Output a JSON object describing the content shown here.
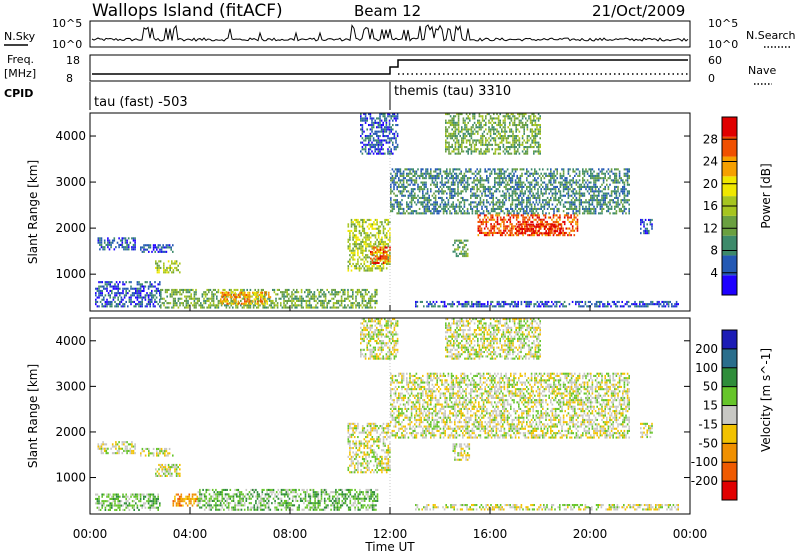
{
  "header": {
    "site": "Wallops Island (fitACF)",
    "beam": "Beam 12",
    "date": "21/Oct/2009"
  },
  "aux_labels": {
    "nsky": "N.Sky",
    "nsearch": "N.Search",
    "freq_line1": "Freq.",
    "freq_line2": "[MHz]",
    "nave": "Nave",
    "cpid": "CPID",
    "nsky_ticks": [
      "10^5",
      "10^0"
    ],
    "nsearch_ticks": [
      "10^5",
      "10^0"
    ],
    "freq_ticks": [
      "18",
      "8"
    ],
    "nave_ticks": [
      "60",
      "0"
    ]
  },
  "cpid": {
    "first": "tau (fast) -503",
    "second": "themis (tau) 3310",
    "switch_hour": 12
  },
  "colors": {
    "power_scale": [
      "#1e00ff",
      "#2459b4",
      "#3d8a6b",
      "#6aa040",
      "#a6c51f",
      "#f0e800",
      "#f6a000",
      "#f05000",
      "#e00000"
    ],
    "velocity_scale": [
      "#1c1cb5",
      "#2a6e8c",
      "#2f8d3a",
      "#66c52a",
      "#c8c8c4",
      "#f2c200",
      "#f09000",
      "#ef5a00",
      "#e10000"
    ],
    "ground_scatter": "#c0c0bc"
  },
  "chart_data": [
    {
      "type": "heatmap",
      "panel": "power",
      "xlabel": "",
      "ylabel": "Slant Range [km]",
      "xlim": [
        0,
        24
      ],
      "ylim": [
        200,
        4500
      ],
      "y_ticks": [
        1000,
        2000,
        3000,
        4000
      ],
      "colorbar": {
        "label": "Power [dB]",
        "range": [
          0,
          32
        ],
        "ticks": [
          4,
          8,
          12,
          16,
          20,
          24,
          28
        ]
      },
      "scatter_regions": [
        {
          "t0": 0.3,
          "t1": 1.8,
          "r0": 1550,
          "r1": 1800,
          "level": 1
        },
        {
          "t0": 2.0,
          "t1": 3.3,
          "r0": 1500,
          "r1": 1650,
          "level": 1
        },
        {
          "t0": 2.6,
          "t1": 3.6,
          "r0": 1050,
          "r1": 1300,
          "level": 4
        },
        {
          "t0": 0.2,
          "t1": 2.8,
          "r0": 300,
          "r1": 850,
          "level": 1
        },
        {
          "t0": 2.8,
          "t1": 11.5,
          "r0": 280,
          "r1": 680,
          "level": 3
        },
        {
          "t0": 5.2,
          "t1": 7.2,
          "r0": 380,
          "r1": 620,
          "level": 6
        },
        {
          "t0": 10.3,
          "t1": 12.0,
          "r0": 1100,
          "r1": 2200,
          "level": 4
        },
        {
          "t0": 11.2,
          "t1": 12.0,
          "r0": 1250,
          "r1": 1600,
          "level": 7
        },
        {
          "t0": 10.8,
          "t1": 12.3,
          "r0": 3600,
          "r1": 4500,
          "level": 1
        },
        {
          "t0": 12.0,
          "t1": 21.6,
          "r0": 2300,
          "r1": 3300,
          "level": 2
        },
        {
          "t0": 15.5,
          "t1": 19.5,
          "r0": 1850,
          "r1": 2300,
          "level": 7
        },
        {
          "t0": 17.0,
          "t1": 18.8,
          "r0": 1900,
          "r1": 2100,
          "level": 8
        },
        {
          "t0": 14.2,
          "t1": 18.0,
          "r0": 3600,
          "r1": 4500,
          "level": 3
        },
        {
          "t0": 14.5,
          "t1": 15.2,
          "r0": 1400,
          "r1": 1750,
          "level": 3
        },
        {
          "t0": 22.0,
          "t1": 22.5,
          "r0": 1900,
          "r1": 2200,
          "level": 1
        },
        {
          "t0": 13.0,
          "t1": 23.5,
          "r0": 280,
          "r1": 420,
          "level": 1
        }
      ]
    },
    {
      "type": "heatmap",
      "panel": "velocity",
      "xlabel": "Time UT",
      "ylabel": "Slant Range [km]",
      "xlim": [
        0,
        24
      ],
      "ylim": [
        200,
        4500
      ],
      "x_ticks": [
        "00:00",
        "04:00",
        "08:00",
        "12:00",
        "16:00",
        "20:00",
        "00:00"
      ],
      "x_tick_hours": [
        0,
        4,
        8,
        12,
        16,
        20,
        24
      ],
      "y_ticks": [
        1000,
        2000,
        3000,
        4000
      ],
      "colorbar": {
        "label": "Velocity [m s^-1]",
        "ticks": [
          "200",
          "100",
          "50",
          "15",
          "-15",
          "-50",
          "-100",
          "-200"
        ]
      },
      "scatter_regions": [
        {
          "t0": 0.3,
          "t1": 1.8,
          "r0": 1550,
          "r1": 1800,
          "level": 4
        },
        {
          "t0": 2.0,
          "t1": 3.3,
          "r0": 1500,
          "r1": 1650,
          "level": 4
        },
        {
          "t0": 2.6,
          "t1": 3.6,
          "r0": 1050,
          "r1": 1300,
          "level": 4
        },
        {
          "t0": 0.2,
          "t1": 2.8,
          "r0": 300,
          "r1": 650,
          "level": 3
        },
        {
          "t0": 3.3,
          "t1": 4.3,
          "r0": 400,
          "r1": 650,
          "level": 6
        },
        {
          "t0": 4.3,
          "t1": 11.5,
          "r0": 280,
          "r1": 750,
          "level": 3
        },
        {
          "t0": 10.3,
          "t1": 12.0,
          "r0": 1100,
          "r1": 2200,
          "level": 4
        },
        {
          "t0": 10.8,
          "t1": 12.3,
          "r0": 3600,
          "r1": 4500,
          "level": 4
        },
        {
          "t0": 12.0,
          "t1": 21.6,
          "r0": 1900,
          "r1": 3300,
          "level": 4
        },
        {
          "t0": 14.2,
          "t1": 18.0,
          "r0": 3600,
          "r1": 4500,
          "level": 4
        },
        {
          "t0": 14.5,
          "t1": 15.2,
          "r0": 1400,
          "r1": 1750,
          "level": 4
        },
        {
          "t0": 22.0,
          "t1": 22.5,
          "r0": 1900,
          "r1": 2200,
          "level": 4
        },
        {
          "t0": 13.0,
          "t1": 23.5,
          "r0": 280,
          "r1": 420,
          "level": 4
        }
      ]
    }
  ]
}
